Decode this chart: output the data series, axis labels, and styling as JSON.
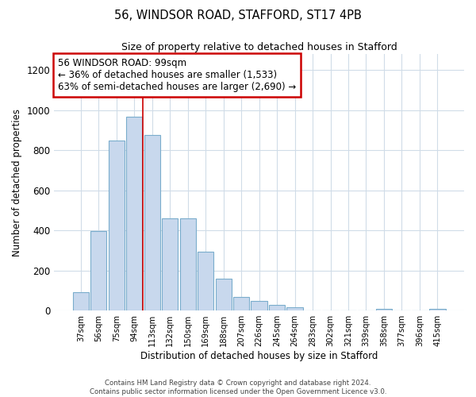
{
  "title1": "56, WINDSOR ROAD, STAFFORD, ST17 4PB",
  "title2": "Size of property relative to detached houses in Stafford",
  "xlabel": "Distribution of detached houses by size in Stafford",
  "ylabel": "Number of detached properties",
  "categories": [
    "37sqm",
    "56sqm",
    "75sqm",
    "94sqm",
    "113sqm",
    "132sqm",
    "150sqm",
    "169sqm",
    "188sqm",
    "207sqm",
    "226sqm",
    "245sqm",
    "264sqm",
    "283sqm",
    "302sqm",
    "321sqm",
    "339sqm",
    "358sqm",
    "377sqm",
    "396sqm",
    "415sqm"
  ],
  "values": [
    90,
    395,
    848,
    968,
    875,
    460,
    460,
    295,
    160,
    68,
    50,
    30,
    18,
    0,
    0,
    0,
    0,
    8,
    0,
    0,
    8
  ],
  "bar_color": "#c8d8ed",
  "bar_edge_color": "#7aadcc",
  "red_line_x": 3.5,
  "annotation_text": "56 WINDSOR ROAD: 99sqm\n← 36% of detached houses are smaller (1,533)\n63% of semi-detached houses are larger (2,690) →",
  "annotation_box_color": "#ffffff",
  "annotation_box_edge": "#cc0000",
  "red_line_color": "#cc0000",
  "ylim": [
    0,
    1280
  ],
  "yticks": [
    0,
    200,
    400,
    600,
    800,
    1000,
    1200
  ],
  "footer_text": "Contains HM Land Registry data © Crown copyright and database right 2024.\nContains public sector information licensed under the Open Government Licence v3.0.",
  "background_color": "#ffffff",
  "plot_background": "#ffffff",
  "grid_color": "#d0dce8"
}
